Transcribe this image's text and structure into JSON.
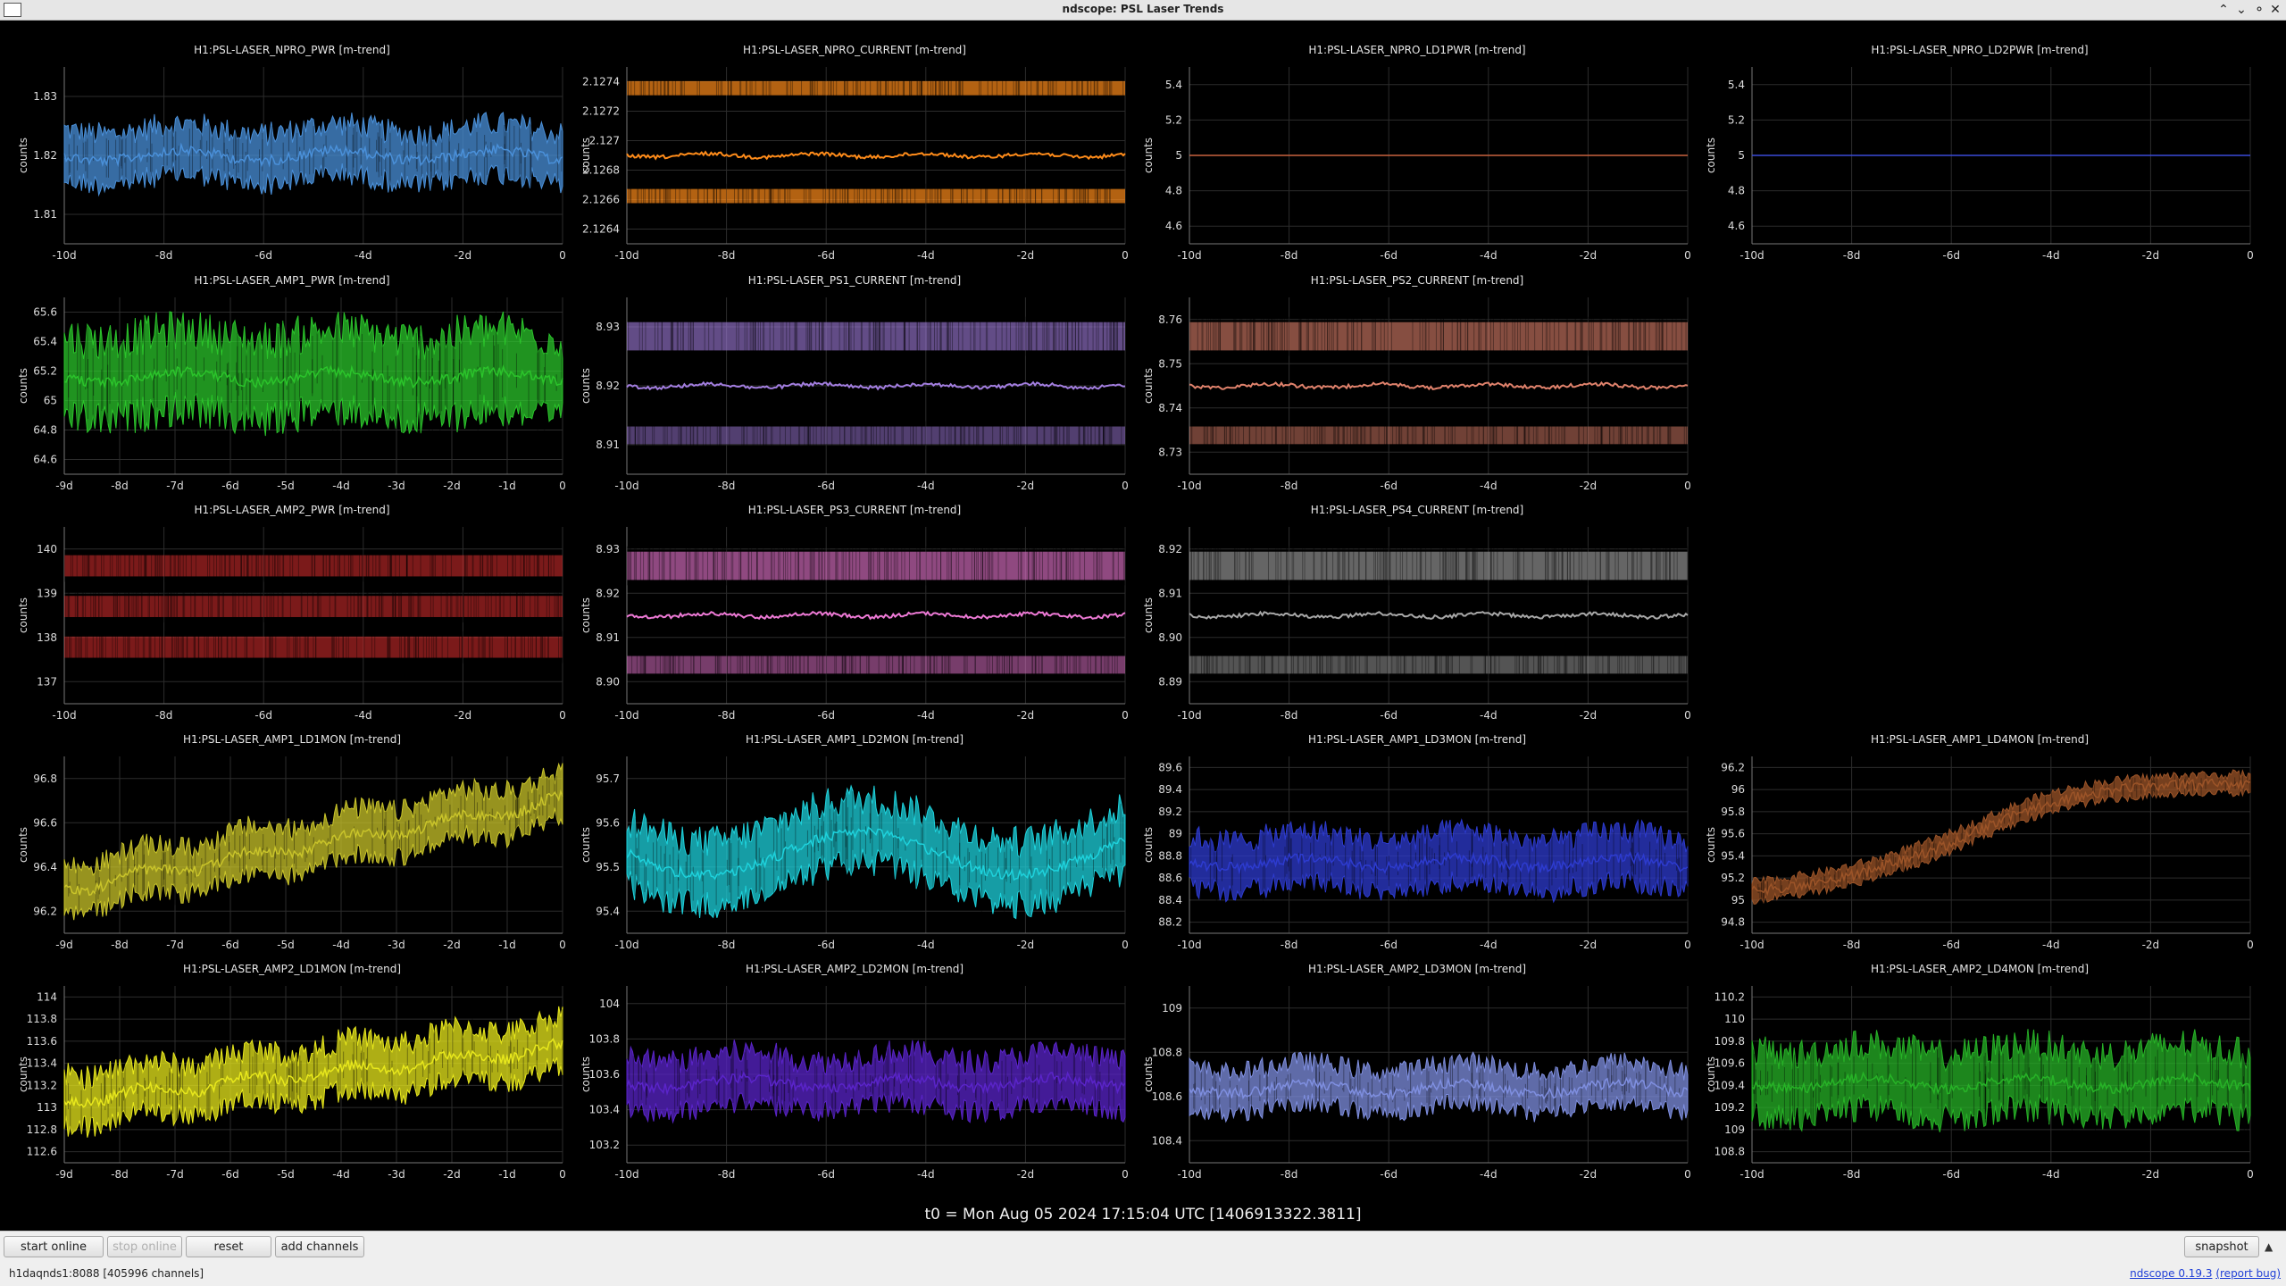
{
  "window": {
    "title": "ndscope: PSL Laser Trends",
    "controls": [
      "⌃",
      "⌄",
      "⚬",
      "✕"
    ]
  },
  "plots": [
    {
      "id": "npro-pwr",
      "title": "H1:PSL-LASER_NPRO_PWR [m-trend]",
      "ylabel": "counts",
      "color": "#4a90d9",
      "yticks": [
        "1.83",
        "1.82",
        "1.81"
      ],
      "xticks": [
        "-10d",
        "-8d",
        "-6d",
        "-4d",
        "-2d",
        "0"
      ],
      "kind": "noise",
      "center": 0.5,
      "amp": 0.22,
      "style": "plain"
    },
    {
      "id": "npro-current",
      "title": "H1:PSL-LASER_NPRO_CURRENT [m-trend]",
      "ylabel": "counts",
      "color": "#ff8c1a",
      "yticks": [
        "2.1274",
        "2.1272",
        "2.127",
        "2.1268",
        "2.1266",
        "2.1264"
      ],
      "xticks": [
        "-10d",
        "-8d",
        "-6d",
        "-4d",
        "-2d",
        "0"
      ],
      "kind": "band3",
      "style": "bands"
    },
    {
      "id": "npro-ld1pwr",
      "title": "H1:PSL-LASER_NPRO_LD1PWR [m-trend]",
      "ylabel": "counts",
      "color": "#c9623f",
      "yticks": [
        "5.4",
        "5.2",
        "5",
        "4.8",
        "4.6"
      ],
      "xticks": [
        "-10d",
        "-8d",
        "-6d",
        "-4d",
        "-2d",
        "0"
      ],
      "kind": "flat",
      "style": "flat"
    },
    {
      "id": "npro-ld2pwr",
      "title": "H1:PSL-LASER_NPRO_LD2PWR [m-trend]",
      "ylabel": "counts",
      "color": "#3b4bd8",
      "yticks": [
        "5.4",
        "5.2",
        "5",
        "4.8",
        "4.6"
      ],
      "xticks": [
        "-10d",
        "-8d",
        "-6d",
        "-4d",
        "-2d",
        "0"
      ],
      "kind": "flat",
      "style": "flat"
    },
    {
      "id": "amp1-pwr",
      "title": "H1:PSL-LASER_AMP1_PWR [m-trend]",
      "ylabel": "counts",
      "color": "#2bc42b",
      "yticks": [
        "65.6",
        "65.4",
        "65.2",
        "65",
        "64.8",
        "64.6"
      ],
      "xticks": [
        "-9d",
        "-8d",
        "-7d",
        "-6d",
        "-5d",
        "-4d",
        "-3d",
        "-2d",
        "-1d",
        "0"
      ],
      "kind": "noise",
      "center": 0.45,
      "amp": 0.35,
      "style": "plain"
    },
    {
      "id": "ps1-current",
      "title": "H1:PSL-LASER_PS1_CURRENT [m-trend]",
      "ylabel": "counts",
      "color": "#a37ee0",
      "yticks": [
        "8.93",
        "8.92",
        "8.91"
      ],
      "xticks": [
        "-10d",
        "-8d",
        "-6d",
        "-4d",
        "-2d",
        "0"
      ],
      "kind": "band2",
      "style": "bands"
    },
    {
      "id": "ps2-current",
      "title": "H1:PSL-LASER_PS2_CURRENT [m-trend]",
      "ylabel": "counts",
      "color": "#e0826c",
      "yticks": [
        "8.76",
        "8.75",
        "8.74",
        "8.73"
      ],
      "xticks": [
        "-10d",
        "-8d",
        "-6d",
        "-4d",
        "-2d",
        "0"
      ],
      "kind": "band2",
      "style": "bands"
    },
    {
      "id": "amp2-pwr",
      "title": "H1:PSL-LASER_AMP2_PWR [m-trend]",
      "ylabel": "counts",
      "color": "#e03030",
      "yticks": [
        "140",
        "139",
        "138",
        "137"
      ],
      "xticks": [
        "-10d",
        "-8d",
        "-6d",
        "-4d",
        "-2d",
        "0"
      ],
      "kind": "tri",
      "style": "bands"
    },
    {
      "id": "ps3-current",
      "title": "H1:PSL-LASER_PS3_CURRENT [m-trend]",
      "ylabel": "counts",
      "color": "#ee7ad6",
      "yticks": [
        "8.93",
        "8.92",
        "8.91",
        "8.90"
      ],
      "xticks": [
        "-10d",
        "-8d",
        "-6d",
        "-4d",
        "-2d",
        "0"
      ],
      "kind": "band2",
      "style": "bands"
    },
    {
      "id": "ps4-current",
      "title": "H1:PSL-LASER_PS4_CURRENT [m-trend]",
      "ylabel": "counts",
      "color": "#a8a8a8",
      "yticks": [
        "8.92",
        "8.91",
        "8.90",
        "8.89"
      ],
      "xticks": [
        "-10d",
        "-8d",
        "-6d",
        "-4d",
        "-2d",
        "0"
      ],
      "kind": "band2",
      "style": "bands"
    },
    {
      "id": "amp1-ld1mon",
      "title": "H1:PSL-LASER_AMP1_LD1MON [m-trend]",
      "ylabel": "counts",
      "color": "#c9c42a",
      "yticks": [
        "96.8",
        "96.6",
        "96.4",
        "96.2"
      ],
      "xticks": [
        "-9d",
        "-8d",
        "-7d",
        "-6d",
        "-5d",
        "-4d",
        "-3d",
        "-2d",
        "-1d",
        "0"
      ],
      "kind": "trend",
      "start": 0.75,
      "end": 0.25,
      "amp": 0.2,
      "style": "plain"
    },
    {
      "id": "amp1-ld2mon",
      "title": "H1:PSL-LASER_AMP1_LD2MON [m-trend]",
      "ylabel": "counts",
      "color": "#1ed2dc",
      "yticks": [
        "95.7",
        "95.6",
        "95.5",
        "95.4"
      ],
      "xticks": [
        "-10d",
        "-8d",
        "-6d",
        "-4d",
        "-2d",
        "0"
      ],
      "kind": "wave",
      "center": 0.55,
      "amp": 0.28,
      "style": "plain"
    },
    {
      "id": "amp1-ld3mon",
      "title": "H1:PSL-LASER_AMP1_LD3MON [m-trend]",
      "ylabel": "counts",
      "color": "#2d3bcf",
      "yticks": [
        "89.6",
        "89.4",
        "89.2",
        "89",
        "88.8",
        "88.6",
        "88.4",
        "88.2"
      ],
      "xticks": [
        "-10d",
        "-8d",
        "-6d",
        "-4d",
        "-2d",
        "0"
      ],
      "kind": "noise",
      "center": 0.6,
      "amp": 0.22,
      "style": "plain"
    },
    {
      "id": "amp1-ld4mon",
      "title": "H1:PSL-LASER_AMP1_LD4MON [m-trend]",
      "ylabel": "counts",
      "color": "#9c5428",
      "yticks": [
        "96.2",
        "96",
        "95.8",
        "95.6",
        "95.4",
        "95.2",
        "95",
        "94.8"
      ],
      "xticks": [
        "-10d",
        "-8d",
        "-6d",
        "-4d",
        "-2d",
        "0"
      ],
      "kind": "scurve",
      "amp": 0.08,
      "style": "plain"
    },
    {
      "id": "amp2-ld1mon",
      "title": "H1:PSL-LASER_AMP2_LD1MON [m-trend]",
      "ylabel": "counts",
      "color": "#e8e81c",
      "yticks": [
        "114",
        "113.8",
        "113.6",
        "113.4",
        "113.2",
        "113",
        "112.8",
        "112.6"
      ],
      "xticks": [
        "-9d",
        "-8d",
        "-7d",
        "-6d",
        "-5d",
        "-4d",
        "-3d",
        "-2d",
        "-1d",
        "0"
      ],
      "kind": "trend",
      "start": 0.65,
      "end": 0.35,
      "amp": 0.22,
      "style": "plain"
    },
    {
      "id": "amp2-ld2mon",
      "title": "H1:PSL-LASER_AMP2_LD2MON [m-trend]",
      "ylabel": "counts",
      "color": "#5a24c9",
      "yticks": [
        "104",
        "103.8",
        "103.6",
        "103.4",
        "103.2"
      ],
      "xticks": [
        "-10d",
        "-8d",
        "-6d",
        "-4d",
        "-2d",
        "0"
      ],
      "kind": "noise",
      "center": 0.55,
      "amp": 0.22,
      "style": "plain"
    },
    {
      "id": "amp2-ld3mon",
      "title": "H1:PSL-LASER_AMP2_LD3MON [m-trend]",
      "ylabel": "counts",
      "color": "#7f8fe0",
      "yticks": [
        "109",
        "108.8",
        "108.6",
        "108.4"
      ],
      "xticks": [
        "-10d",
        "-8d",
        "-6d",
        "-4d",
        "-2d",
        "0"
      ],
      "kind": "noise",
      "center": 0.58,
      "amp": 0.18,
      "style": "plain"
    },
    {
      "id": "amp2-ld4mon",
      "title": "H1:PSL-LASER_AMP2_LD4MON [m-trend]",
      "ylabel": "counts",
      "color": "#27b327",
      "yticks": [
        "110.2",
        "110",
        "109.8",
        "109.6",
        "109.4",
        "109.2",
        "109",
        "108.8"
      ],
      "xticks": [
        "-10d",
        "-8d",
        "-6d",
        "-4d",
        "-2d",
        "0"
      ],
      "kind": "noise",
      "center": 0.55,
      "amp": 0.28,
      "style": "plain"
    }
  ],
  "t0": "t0 = Mon Aug 05 2024 17:15:04 UTC [1406913322.3811]",
  "toolbar": {
    "start_online": "start online",
    "stop_online": "stop online",
    "reset": "reset",
    "add_channels": "add channels",
    "snapshot": "snapshot",
    "arrow": "▲"
  },
  "status": {
    "server": "h1daqnds1:8088",
    "channels": "[405996 channels]",
    "version": "ndscope 0.19.3",
    "report": "(report bug)"
  }
}
